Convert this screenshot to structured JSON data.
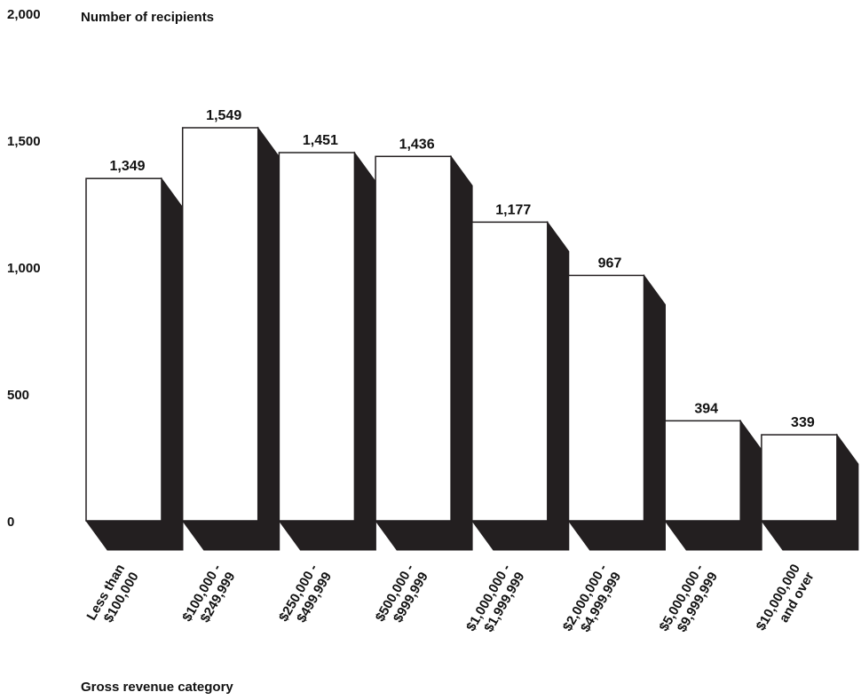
{
  "chart_data": {
    "type": "bar",
    "title": "",
    "ylabel": "Number of recipients",
    "xlabel": "Gross revenue category",
    "ylim": [
      0,
      2000
    ],
    "yticks": [
      0,
      500,
      1000,
      1500,
      2000
    ],
    "ytick_labels": [
      "0",
      "500",
      "1,000",
      "1,500",
      "2,000"
    ],
    "categories": [
      [
        "Less than",
        "$100,000"
      ],
      [
        "$100,000 -",
        "$249,999"
      ],
      [
        "$250,000 -",
        "$499,999"
      ],
      [
        "$500,000 -",
        "$999,999"
      ],
      [
        "$1,000,000 -",
        "$1,999,999"
      ],
      [
        "$2,000,000 -",
        "$4,999,999"
      ],
      [
        "$5,000,000 -",
        "$9,999,999"
      ],
      [
        "$10,000,000",
        "and over"
      ]
    ],
    "values": [
      1349,
      1549,
      1451,
      1436,
      1177,
      967,
      394,
      339
    ],
    "value_labels": [
      "1,349",
      "1,549",
      "1,451",
      "1,436",
      "1,177",
      "967",
      "394",
      "339"
    ],
    "grid": false,
    "style": "3d-extruded-bars",
    "colors": {
      "bar_face": "#ffffff",
      "bar_outline": "#231f20",
      "bar_shadow": "#231f20",
      "text": "#111111"
    }
  }
}
